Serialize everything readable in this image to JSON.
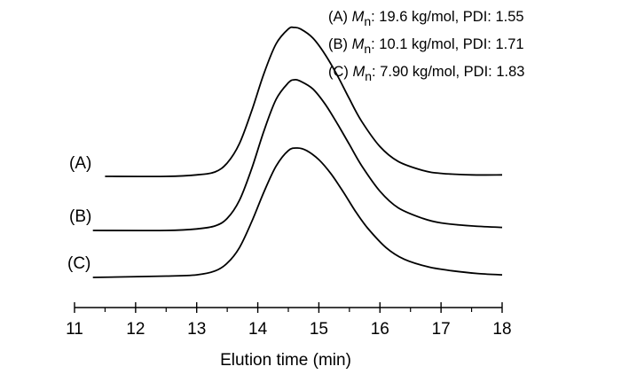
{
  "chart_data": {
    "type": "line",
    "xlabel": "Elution time (min)",
    "ylabel": "",
    "xlim": [
      11,
      18
    ],
    "xticks": [
      "11",
      "12",
      "13",
      "14",
      "15",
      "16",
      "17",
      "18"
    ],
    "minor_ticks_per_major": 1,
    "y_axis_shown": false,
    "grid": false,
    "legend_position": "top-right",
    "series": [
      {
        "name": "(A)",
        "legend": {
          "prefix": "(A) ",
          "symbol": "M",
          "subscript": "n",
          "text": ": 19.6 kg/mol, PDI: 1.55"
        },
        "x": [
          11.5,
          12.5,
          13.0,
          13.3,
          13.5,
          13.7,
          13.9,
          14.1,
          14.3,
          14.5,
          14.6,
          14.7,
          14.9,
          15.1,
          15.3,
          15.5,
          15.7,
          16.0,
          16.3,
          16.7,
          17.0,
          17.5,
          18.0
        ],
        "y": [
          0.0,
          0.0,
          0.01,
          0.03,
          0.09,
          0.22,
          0.44,
          0.69,
          0.89,
          0.99,
          1.0,
          0.99,
          0.93,
          0.82,
          0.68,
          0.52,
          0.37,
          0.2,
          0.1,
          0.04,
          0.02,
          0.01,
          0.01
        ]
      },
      {
        "name": "(B)",
        "legend": {
          "prefix": "(B) ",
          "symbol": "M",
          "subscript": "n",
          "text": ": 10.1 kg/mol, PDI: 1.71"
        },
        "x": [
          11.3,
          12.5,
          13.0,
          13.3,
          13.5,
          13.7,
          13.9,
          14.1,
          14.3,
          14.5,
          14.6,
          14.7,
          14.9,
          15.1,
          15.3,
          15.5,
          15.7,
          16.0,
          16.3,
          16.7,
          17.0,
          17.5,
          18.0
        ],
        "y": [
          0.0,
          0.0,
          0.01,
          0.03,
          0.08,
          0.2,
          0.41,
          0.66,
          0.87,
          0.98,
          1.0,
          0.99,
          0.94,
          0.84,
          0.71,
          0.57,
          0.43,
          0.26,
          0.15,
          0.08,
          0.05,
          0.03,
          0.02
        ]
      },
      {
        "name": "(C)",
        "legend": {
          "prefix": "(C) ",
          "symbol": "M",
          "subscript": "n",
          "text": ": 7.90 kg/mol, PDI: 1.83"
        },
        "x": [
          11.3,
          12.5,
          13.0,
          13.3,
          13.5,
          13.7,
          13.9,
          14.1,
          14.3,
          14.5,
          14.65,
          14.8,
          15.0,
          15.2,
          15.4,
          15.6,
          15.8,
          16.1,
          16.4,
          16.8,
          17.2,
          17.6,
          18.0
        ],
        "y": [
          0.0,
          0.01,
          0.02,
          0.05,
          0.11,
          0.23,
          0.43,
          0.66,
          0.86,
          0.98,
          1.0,
          0.98,
          0.91,
          0.8,
          0.66,
          0.51,
          0.38,
          0.23,
          0.14,
          0.08,
          0.05,
          0.03,
          0.02
        ]
      }
    ]
  }
}
